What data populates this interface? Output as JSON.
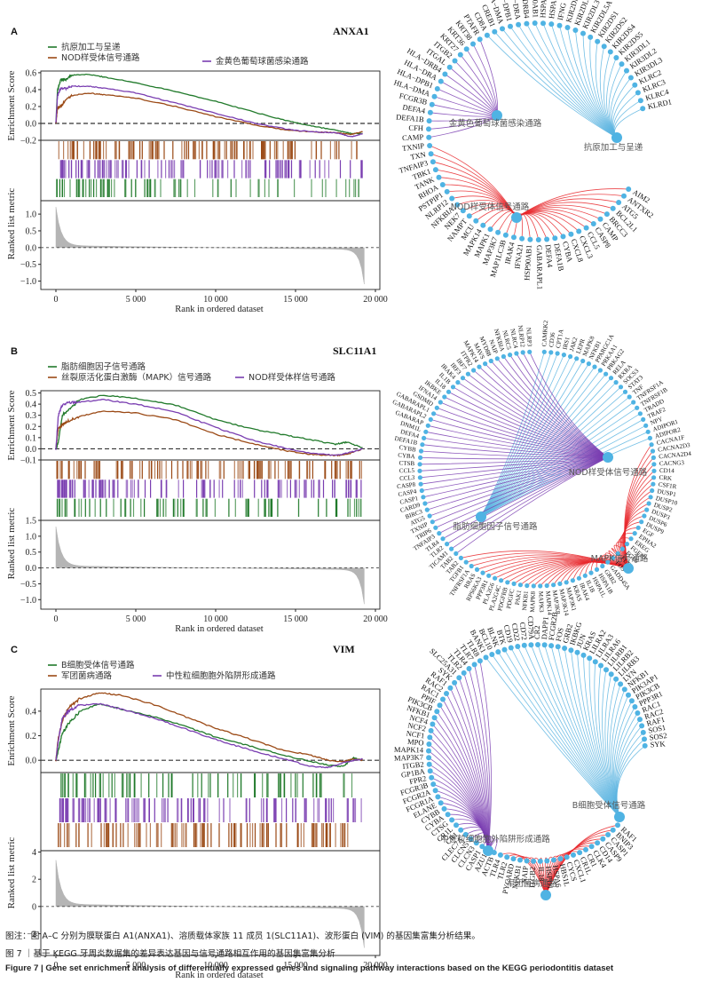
{
  "figure": {
    "note": "图注：图 A–C 分别为膜联蛋白 A1(ANXA1)、溶质载体家族 11 成员 1(SLC11A1)、波形蛋白 (VIM) 的基因集富集分析结果。",
    "title_cn": "图 7 ｜基于 KEGG 牙周炎数据集的差异表达基因与信号通路相互作用的基因集富集分析",
    "title_en": "Figure 7  |  Gene set enrichment analysis of differentially expressed genes and signaling pathway interactions based on the KEGG periodontitis dataset"
  },
  "colors": {
    "green": "#217a2b",
    "brown": "#9b4a16",
    "purple": "#7a3eb1",
    "light_blue": "#5ab4e0",
    "red": "#e8262a",
    "node": "#4fb3e3",
    "gray": "#b5b5b5"
  },
  "panels": [
    {
      "letter": "A",
      "gene": "ANXA1",
      "network": {
        "hubs": [
          {
            "label": "金黄色葡萄球菌感染通路",
            "color": "purple",
            "genes": [
              "CAMP",
              "CFH",
              "DEFA1B",
              "DEFA4",
              "FCGR3B",
              "HLA−DMA",
              "HLA−DPB1",
              "HLA−DRA",
              "HLA−DRB4",
              "ITGAL",
              "ITGB2",
              "KRT27",
              "KRT36",
              "KRT38",
              "PTAFR"
            ]
          },
          {
            "label": "抗原加工与呈递",
            "color": "light_blue",
            "genes": [
              "CD8A",
              "CREB1",
              "HLA−DMA",
              "HLA−DPB1",
              "HLA−DRA",
              "HLA−DRB4",
              "HSP90AB1",
              "HSPA1B",
              "HSPA1L",
              "IFNG",
              "KIR2DL1",
              "KIR2DL2",
              "KIR2DL3",
              "KIR2DL5A",
              "KIR2DS1",
              "KIR2DS2",
              "KIR2DS4",
              "KIR2DS5",
              "KIR3DL1",
              "KIR3DL2",
              "KIR3DL3",
              "KLRC2",
              "KLRC3",
              "KLRC4",
              "KLRD1"
            ]
          },
          {
            "label": "NOD样受体信号通路",
            "color": "red",
            "genes": [
              "AIM2",
              "ANTXR2",
              "ATG5",
              "BCL2L1",
              "BRCC3",
              "CAMP",
              "CASP8",
              "CCL5",
              "CXCL3",
              "CXCL8",
              "CYBA",
              "DEFA1B",
              "DEFA4",
              "GABARAPL1",
              "HSP90AB1",
              "IFNA21",
              "IRAK4",
              "MAP1LC3B",
              "MAP3K7",
              "MAPK1",
              "MAPK14",
              "MCU",
              "NAMPT",
              "NEK7",
              "NFKBIA",
              "NLRP12",
              "PSTPIP1",
              "RHOA",
              "TANK",
              "TBK1",
              "TNFAIP3",
              "TXN",
              "TXNIP"
            ]
          }
        ]
      },
      "chart_data": {
        "type": "line",
        "legend": [
          {
            "name": "抗原加工与呈递",
            "color": "green"
          },
          {
            "name": "NOD样受体信号通路",
            "color": "brown"
          },
          {
            "name": "金黄色葡萄球菌感染通路",
            "color": "purple"
          }
        ],
        "ylabel_top": "Enrichment Score",
        "ylabel_bottom": "Ranked list metric",
        "xlabel": "Rank in ordered dataset",
        "xticks": [
          "0",
          "5 000",
          "10 000",
          "15 000",
          "20 000"
        ],
        "xlim": [
          0,
          20000
        ],
        "es_ylim": [
          -0.2,
          0.62
        ],
        "es_yticks": [
          "0.6",
          "0.4",
          "0.2",
          "0.0",
          "−0.2"
        ],
        "es_ytick_values": [
          0.6,
          0.4,
          0.2,
          0.0,
          -0.2
        ],
        "rank_ylim": [
          -1.25,
          1.4
        ],
        "rank_yticks": [
          "1.0",
          "0.5",
          "0.0",
          "−0.5",
          "−1.0"
        ],
        "rank_ytick_values": [
          1.0,
          0.5,
          0.0,
          -0.5,
          -1.0
        ],
        "rank_metric": {
          "max": 1.35,
          "min": -1.15,
          "n": 19300
        },
        "series": [
          {
            "name": "抗原加工与呈递",
            "color": "green",
            "x": [
              0,
              100,
              300,
              600,
              1000,
              2000,
              3000,
              5000,
              7500,
              10000,
              12500,
              14500,
              16000,
              17500,
              18500,
              19200
            ],
            "y": [
              0,
              0.4,
              0.52,
              0.52,
              0.57,
              0.58,
              0.55,
              0.48,
              0.38,
              0.26,
              0.13,
              0.03,
              -0.03,
              -0.08,
              -0.12,
              -0.12
            ]
          },
          {
            "name": "NOD样受体信号通路",
            "color": "brown",
            "x": [
              0,
              100,
              300,
              600,
              1000,
              2000,
              3000,
              5000,
              7500,
              10000,
              12500,
              14500,
              16000,
              17500,
              18500,
              19200
            ],
            "y": [
              0,
              0.18,
              0.2,
              0.27,
              0.33,
              0.36,
              0.34,
              0.3,
              0.2,
              0.08,
              -0.02,
              -0.08,
              -0.1,
              -0.11,
              -0.13,
              -0.1
            ]
          },
          {
            "name": "金黄色葡萄球菌感染通路",
            "color": "purple",
            "x": [
              0,
              100,
              300,
              600,
              1000,
              2000,
              3000,
              5000,
              7500,
              10000,
              12500,
              14500,
              16000,
              17500,
              18500,
              19200
            ],
            "y": [
              0,
              0.33,
              0.42,
              0.41,
              0.44,
              0.44,
              0.42,
              0.36,
              0.24,
              0.12,
              0.0,
              -0.07,
              -0.1,
              -0.11,
              -0.16,
              -0.12
            ]
          }
        ],
        "hit_rows": [
          "brown",
          "purple",
          "green"
        ]
      }
    },
    {
      "letter": "B",
      "gene": "SLC11A1",
      "network": {
        "hubs": [
          {
            "label": "脂肪细胞因子信号通路",
            "color": "light_blue",
            "genes": [
              "CAMKK2",
              "CD36",
              "CPT1A",
              "IRS1",
              "JAK2",
              "LEPR",
              "MAPK8",
              "NFKB1",
              "PPARGC1A",
              "PRKAA1",
              "PRKAG2",
              "RELA",
              "RXRA",
              "SOCS3",
              "STAT3",
              "TNF",
              "TNFRSF1A",
              "TNFRSF1B",
              "TRADD",
              "TRAF2",
              "NPY",
              "ADIPOR1",
              "ADIPOR2"
            ]
          },
          {
            "label": "NOD样受体信号通路",
            "color": "purple",
            "genes": [
              "NLRP3",
              "NLRP12",
              "NLRC4",
              "NLRC5",
              "NFKBIA",
              "NAIP",
              "MYD88",
              "MAVS",
              "MAPK14",
              "ITPR2",
              "IRF7",
              "IRF3",
              "IRAK4",
              "IL1B",
              "IL18",
              "IKBKE",
              "IFNA14",
              "GSDMD",
              "GABARAPL1",
              "GABARAPL2",
              "GABARAP",
              "DNM1L",
              "DEFA4",
              "DEFA1B",
              "CYBB",
              "CYBA",
              "CTSB",
              "CCL5",
              "CCL3",
              "CASP8",
              "CASP4",
              "CASP1",
              "CARD9",
              "BIRC3",
              "ATG5",
              "TXNIP",
              "TRIP6",
              "TNFAIP3",
              "TLR4",
              "TLR2",
              "TICAM1",
              "TAB2"
            ]
          },
          {
            "label": "MAPK信号通路",
            "color": "red",
            "genes": [
              "CACNA1F",
              "CACNA2D3",
              "CACNA2D4",
              "CACNG3",
              "CD14",
              "CRK",
              "CSF1R",
              "DUSP1",
              "DUSP10",
              "DUSP2",
              "DUSP3",
              "DUSP6",
              "DUSP9",
              "EGF",
              "EPHA2",
              "EREG",
              "FGF20",
              "FGF6",
              "FLT3",
              "FOS",
              "GADD45A",
              "GRB2",
              "HSPA1B",
              "HSPA1L",
              "IL1B",
              "IRAK4",
              "KRAS",
              "MAP3K1",
              "MAP3K14",
              "MAP3K8",
              "MAPK14",
              "MAPK3",
              "MAPK8",
              "NFKB1",
              "PAK1",
              "PDGFC",
              "PDGFRB",
              "PLA2G4C",
              "PLA2G6",
              "PPP3R1",
              "RPS6KA3",
              "RRAS",
              "TNFRSF1A",
              "TGFB1",
              "TAB2"
            ]
          }
        ]
      },
      "chart_data": {
        "type": "line",
        "legend": [
          {
            "name": "脂肪细胞因子信号通路",
            "color": "green"
          },
          {
            "name": "丝裂原活化蛋白激酶（MAPK）信号通路",
            "color": "brown"
          },
          {
            "name": "NOD样受体样信号通路",
            "color": "purple"
          }
        ],
        "ylabel_top": "Enrichment Score",
        "ylabel_bottom": "Ranked list metric",
        "xlabel": "Rank in ordered dataset",
        "xticks": [
          "0",
          "5 000",
          "10 000",
          "15 000",
          "20 000"
        ],
        "xlim": [
          0,
          20000
        ],
        "es_ylim": [
          -0.1,
          0.52
        ],
        "es_yticks": [
          "0.5",
          "0.4",
          "0.3",
          "0.2",
          "0.1",
          "0.0",
          "−0.1"
        ],
        "es_ytick_values": [
          0.5,
          0.4,
          0.3,
          0.2,
          0.1,
          0.0,
          -0.1
        ],
        "rank_ylim": [
          -1.3,
          1.5
        ],
        "rank_yticks": [
          "1.5",
          "1.0",
          "0.5",
          "0.0",
          "−0.5",
          "−1.0"
        ],
        "rank_ytick_values": [
          1.5,
          1.0,
          0.5,
          0.0,
          -0.5,
          -1.0
        ],
        "rank_metric": {
          "max": 1.45,
          "min": -1.2,
          "n": 19300
        },
        "series": [
          {
            "name": "脂肪细胞因子信号通路",
            "color": "green",
            "x": [
              0,
              150,
              400,
              800,
              1500,
              3000,
              5000,
              7500,
              10000,
              12500,
              14500,
              16000,
              17500,
              18200,
              19200
            ],
            "y": [
              0,
              0.06,
              0.3,
              0.35,
              0.44,
              0.48,
              0.45,
              0.39,
              0.26,
              0.17,
              0.12,
              0.08,
              0.04,
              0.06,
              0.01
            ]
          },
          {
            "name": "丝裂原活化蛋白激酶（MAPK）信号通路",
            "color": "brown",
            "x": [
              0,
              150,
              400,
              800,
              1500,
              3000,
              5000,
              7500,
              10000,
              12500,
              14500,
              16000,
              17500,
              18200,
              19200
            ],
            "y": [
              0,
              0.18,
              0.22,
              0.25,
              0.29,
              0.34,
              0.32,
              0.26,
              0.13,
              0.04,
              -0.02,
              -0.05,
              -0.06,
              -0.05,
              0.0
            ]
          },
          {
            "name": "NOD样受体样信号通路",
            "color": "purple",
            "x": [
              0,
              150,
              400,
              800,
              1500,
              3000,
              5000,
              7500,
              10000,
              12500,
              14500,
              16000,
              17500,
              18200,
              19200
            ],
            "y": [
              0,
              0.3,
              0.39,
              0.41,
              0.42,
              0.44,
              0.4,
              0.33,
              0.19,
              0.07,
              0.0,
              -0.04,
              -0.06,
              -0.04,
              0.0
            ]
          }
        ],
        "hit_rows": [
          "brown",
          "purple",
          "green"
        ]
      }
    },
    {
      "letter": "C",
      "gene": "VIM",
      "network": {
        "hubs": [
          {
            "label": "中性粒细胞胞外陷阱形成通路",
            "color": "purple",
            "genes": [
              "ACTB",
              "AZU1",
              "CASP1",
              "CLCN3",
              "CLCN5",
              "CLEC7A",
              "CR1",
              "CR1L",
              "CTSG",
              "CYBA",
              "CYBB",
              "ELANE",
              "FCGR1A",
              "FCGR2A",
              "FCGR3B",
              "FPR2",
              "GP1BA",
              "ITGB2",
              "MAP3K7",
              "MAPK14",
              "MPO",
              "NCF1",
              "NCF2",
              "NCF4",
              "NFKB1",
              "PIK3CB",
              "PPIF",
              "RAC1",
              "RAC2",
              "RAF1",
              "SYK",
              "SLC25A31",
              "TLR2",
              "TLR4",
              "TLR7",
              "TLR8"
            ]
          },
          {
            "label": "B细胞受体信号通路",
            "color": "light_blue",
            "genes": [
              "BANK1",
              "BCL10",
              "BLNK",
              "BTK",
              "CD19",
              "CD22",
              "CD72",
              "CD79A",
              "CR2",
              "DAPP1",
              "FCGR2B",
              "FOS",
              "GRB2",
              "IKBKG",
              "JUN",
              "KRAS",
              "LILRA2",
              "LILRA3",
              "LILRA6",
              "LILRB1",
              "LILRB2",
              "LILRB3",
              "LYN",
              "NFKB1",
              "PIK3AP1",
              "PIK3CB",
              "PPP3R1",
              "RAC1",
              "RAC2",
              "RAF1",
              "SOS1",
              "SOS2",
              "SYK"
            ]
          },
          {
            "label": "军团菌病通路",
            "color": "red",
            "genes": [
              "TLR4",
              "TLR2",
              "PYCARD",
              "NFKB1",
              "NAIP",
              "ITGB2",
              "IL18",
              "HSPD1",
              "HSPA6",
              "HBS1L",
              "CYCS",
              "CXCL1",
              "CR1L",
              "CR1",
              "CLK4",
              "CD14",
              "CASP9",
              "CASP1",
              "BNIP3",
              "RAF1"
            ]
          }
        ]
      },
      "chart_data": {
        "type": "line",
        "legend": [
          {
            "name": "B细胞受体信号通路",
            "color": "green"
          },
          {
            "name": "军团菌病通路",
            "color": "brown"
          },
          {
            "name": "中性粒细胞胞外陷阱形成通路",
            "color": "purple"
          }
        ],
        "ylabel_top": "Enrichment Score",
        "ylabel_bottom": "Ranked list metric",
        "xlabel": "Rank in ordered dataset",
        "xticks": [
          "0",
          "5 000",
          "10 000",
          "15 000",
          "20 000"
        ],
        "xlim": [
          0,
          20000
        ],
        "es_ylim": [
          -0.1,
          0.58
        ],
        "es_yticks": [
          "0.4",
          "0.2",
          "0.0"
        ],
        "es_ytick_values": [
          0.4,
          0.2,
          0.0
        ],
        "rank_ylim": [
          -3.6,
          4.1
        ],
        "rank_yticks": [
          "4",
          "2",
          "0",
          "−2"
        ],
        "rank_ytick_values": [
          4,
          2,
          0,
          -2
        ],
        "rank_metric": {
          "max": 3.8,
          "min": -3.2,
          "n": 19300
        },
        "series": [
          {
            "name": "B细胞受体信号通路",
            "color": "green",
            "x": [
              0,
              150,
              400,
              800,
              1500,
              2700,
              4000,
              6000,
              8000,
              10000,
              12000,
              14000,
              16000,
              17000,
              18000,
              18600,
              19200
            ],
            "y": [
              0,
              0.08,
              0.22,
              0.3,
              0.4,
              0.46,
              0.42,
              0.36,
              0.28,
              0.19,
              0.12,
              0.05,
              -0.01,
              -0.04,
              -0.05,
              0.02,
              0.0
            ]
          },
          {
            "name": "军团菌病通路",
            "color": "brown",
            "x": [
              0,
              150,
              400,
              800,
              1500,
              2700,
              4000,
              6000,
              8000,
              10000,
              12000,
              14000,
              16000,
              17000,
              18000,
              18600,
              19200
            ],
            "y": [
              0,
              0.18,
              0.32,
              0.43,
              0.5,
              0.55,
              0.53,
              0.46,
              0.36,
              0.26,
              0.18,
              0.09,
              0.04,
              0.0,
              -0.01,
              0.01,
              0.0
            ]
          },
          {
            "name": "中性粒细胞胞外陷阱形成通路",
            "color": "purple",
            "x": [
              0,
              150,
              400,
              800,
              1500,
              2700,
              4000,
              6000,
              8000,
              10000,
              12000,
              14000,
              16000,
              17000,
              18000,
              18600,
              19200
            ],
            "y": [
              0,
              0.16,
              0.34,
              0.4,
              0.45,
              0.46,
              0.42,
              0.35,
              0.26,
              0.17,
              0.09,
              0.02,
              -0.05,
              -0.06,
              -0.02,
              0.0,
              0.01
            ]
          }
        ],
        "hit_rows": [
          "green",
          "purple",
          "brown"
        ]
      }
    }
  ]
}
